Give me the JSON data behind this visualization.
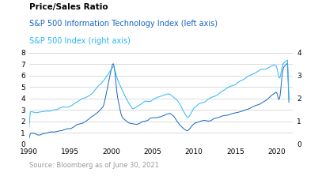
{
  "title": "Price/Sales Ratio",
  "legend_it": "S&P 500 Information Technology Index (left axis)",
  "legend_sp": "S&P 500 Index (right axis)",
  "source": "Source: Bloomberg as of June 30, 2021",
  "color_it": "#1565C0",
  "color_sp": "#29B6F6",
  "xlim": [
    1990,
    2022
  ],
  "ylim_left": [
    0,
    8
  ],
  "ylim_right": [
    0,
    4
  ],
  "xticks": [
    1990,
    1995,
    2000,
    2005,
    2010,
    2015,
    2020
  ],
  "yticks_left": [
    0,
    1,
    2,
    3,
    4,
    5,
    6,
    7,
    8
  ],
  "yticks_right": [
    0,
    1,
    2,
    3,
    4
  ],
  "background_color": "#ffffff",
  "grid_color": "#cccccc",
  "title_fontsize": 7.5,
  "legend_fontsize": 7,
  "axis_fontsize": 6.5,
  "source_fontsize": 6,
  "source_color": "#999999",
  "title_color": "#000000",
  "legend_it_color": "#1565C0",
  "legend_sp_color": "#29B6F6"
}
